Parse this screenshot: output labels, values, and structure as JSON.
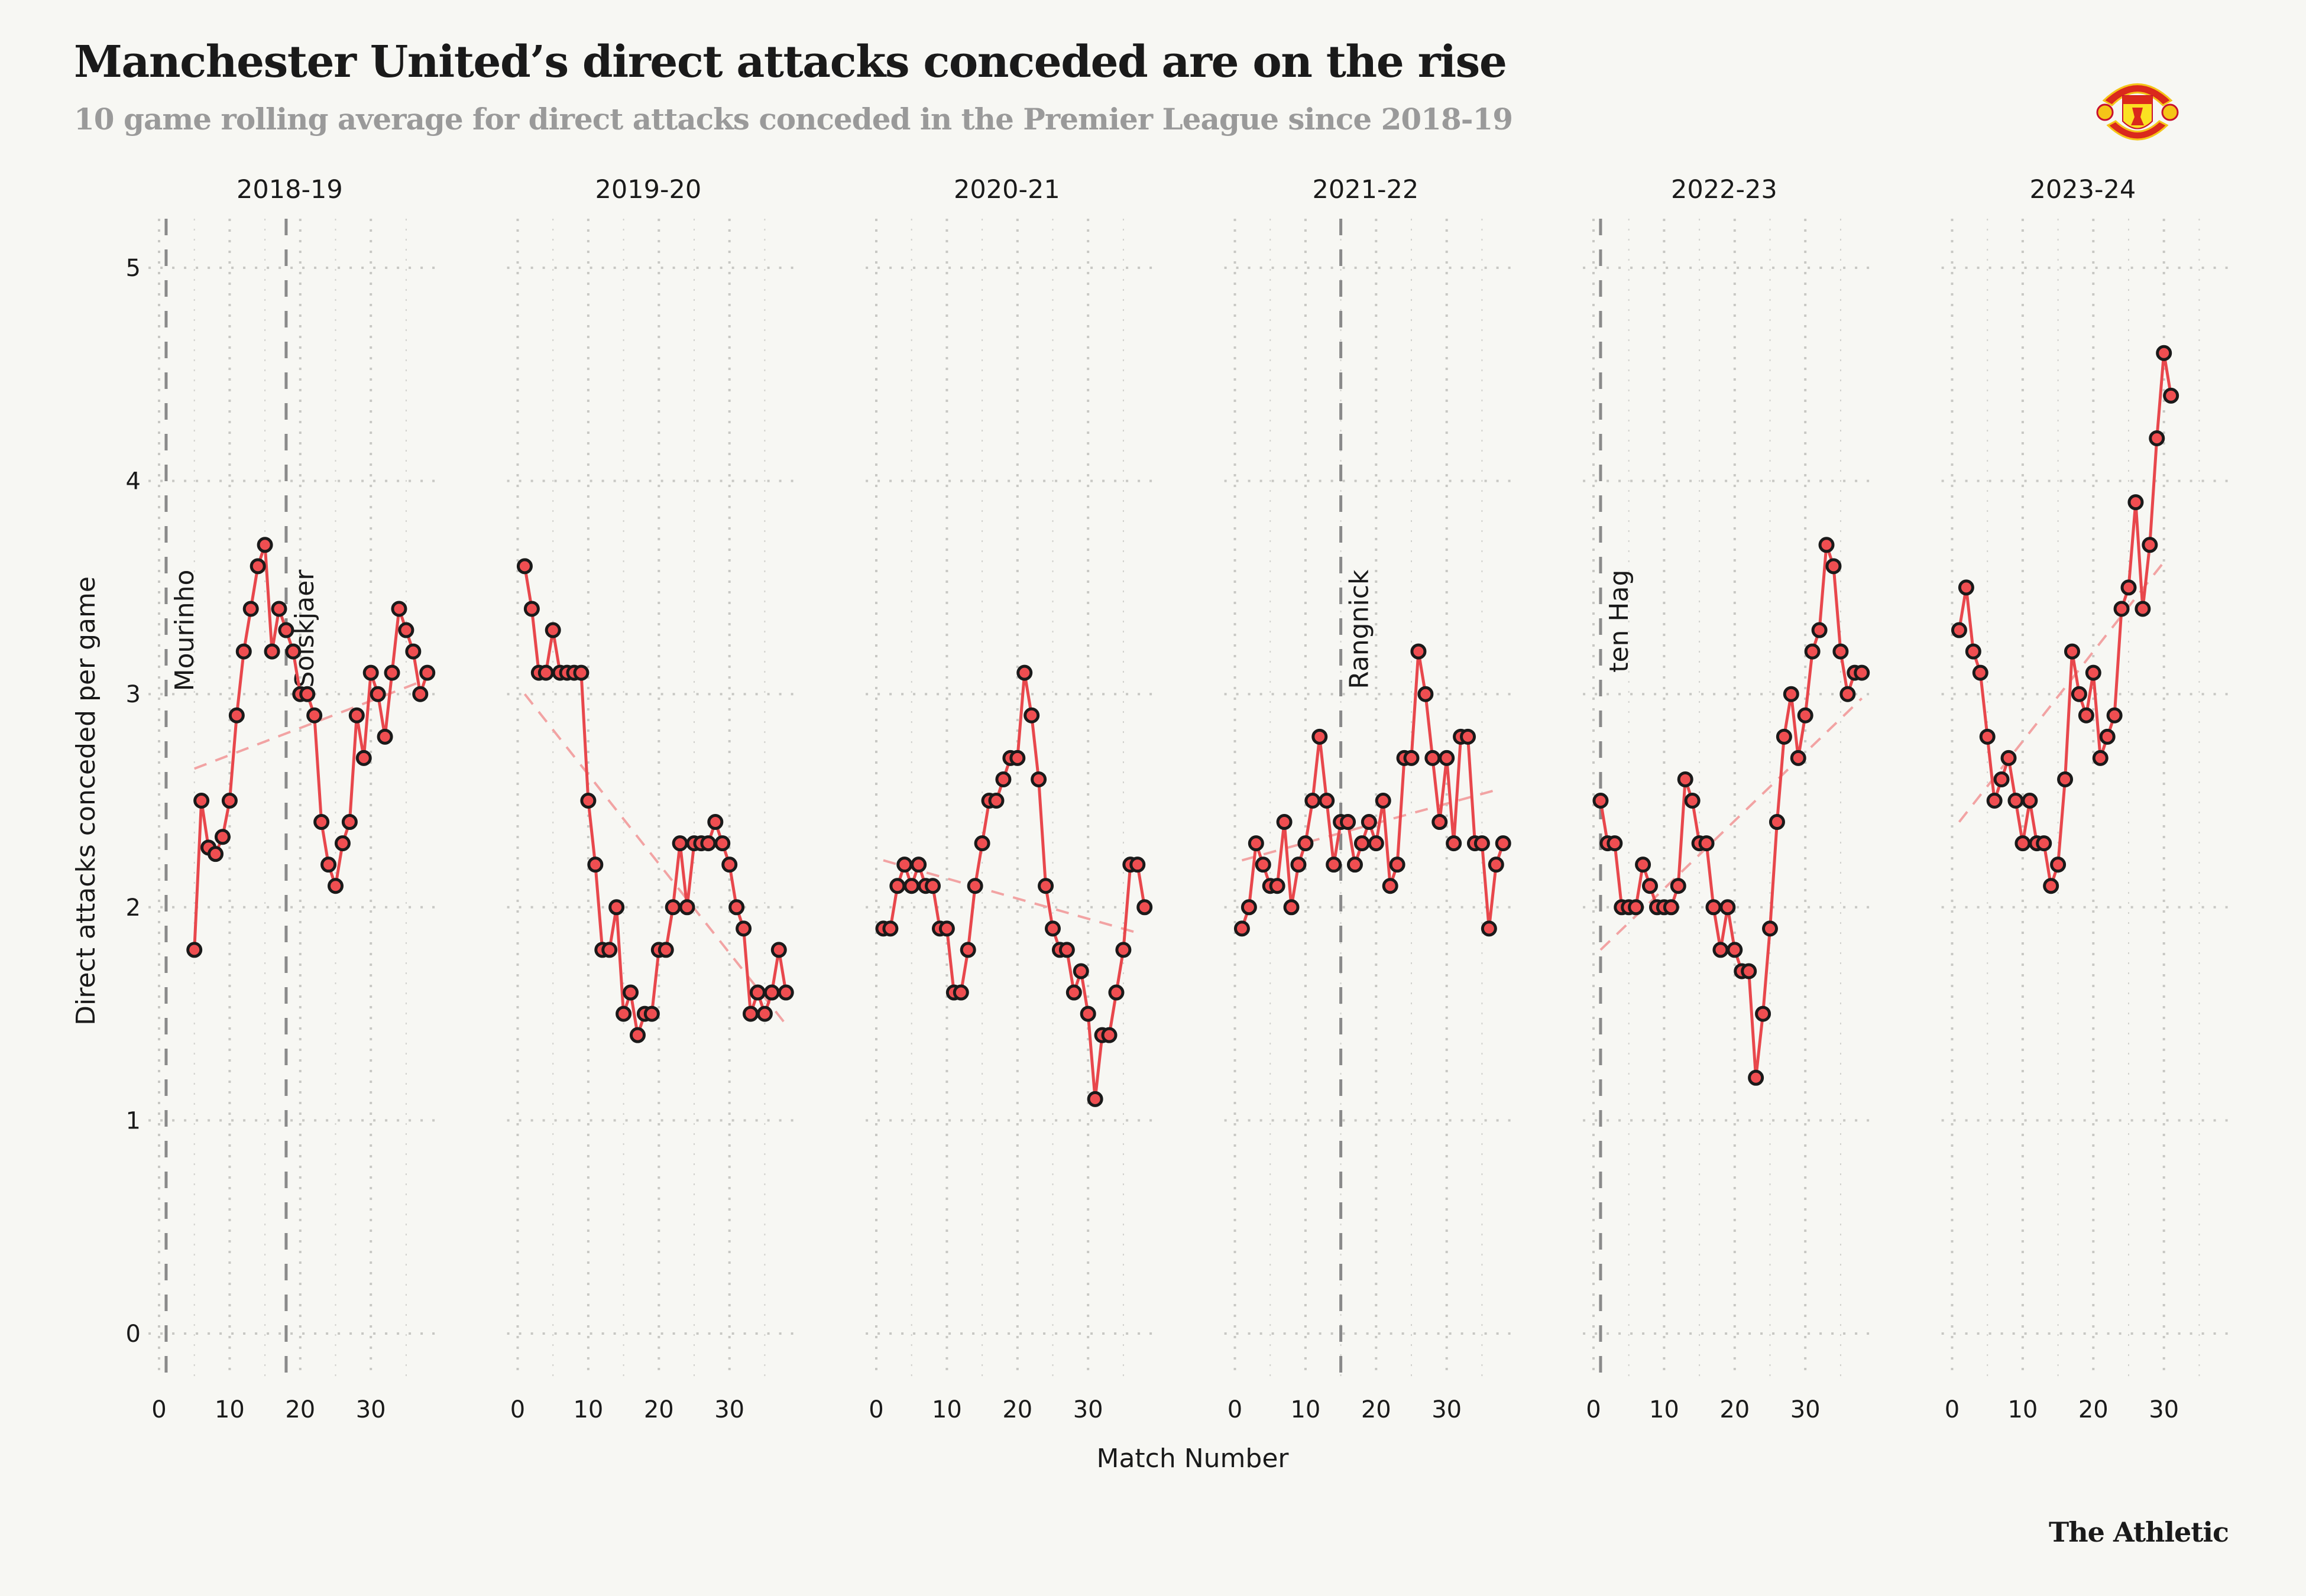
{
  "header": {
    "title": "Manchester United’s direct attacks conceded are on the rise",
    "subtitle": "10 game rolling average for direct attacks conceded in the Premier League since 2018-19"
  },
  "logo": {
    "name": "manchester-united-crest",
    "text_top": "MANCHESTER",
    "text_bottom": "UNITED"
  },
  "footer": {
    "brand": "The Athletic"
  },
  "chart_data": {
    "type": "line",
    "title": "Manchester United’s direct attacks conceded are on the rise",
    "subtitle": "10 game rolling average for direct attacks conceded in the Premier League since 2018-19",
    "xlabel": "Match Number",
    "ylabel": "Direct attacks conceded per game",
    "ylim": [
      0,
      5
    ],
    "yticks": [
      0,
      1,
      2,
      3,
      4,
      5
    ],
    "xticks": [
      0,
      10,
      20,
      30
    ],
    "grid": true,
    "colors": {
      "line": "#e8474c",
      "point_fill": "#ef4e51",
      "point_stroke": "#1a1a1a",
      "trend": "#f2a3a3",
      "manager_line": "#8a8a8a",
      "grid": "#c8c8c4"
    },
    "facets": [
      {
        "season": "2018-19",
        "start_match": 5,
        "values": [
          1.8,
          2.5,
          2.28,
          2.25,
          2.33,
          2.5,
          2.9,
          3.2,
          3.4,
          3.6,
          3.7,
          3.2,
          3.4,
          3.3,
          3.2,
          3.0,
          3.0,
          2.9,
          2.4,
          2.2,
          2.1,
          2.3,
          2.4,
          2.9,
          2.7,
          3.1,
          3.0,
          2.8,
          3.1,
          3.4,
          3.3,
          3.2,
          3.0,
          3.1
        ],
        "trend": {
          "from": [
            5,
            2.65
          ],
          "to": [
            38,
            3.07
          ]
        },
        "managers": [
          {
            "name": "Mourinho",
            "match": 1
          },
          {
            "name": "Solskjaer",
            "match": 18
          }
        ]
      },
      {
        "season": "2019-20",
        "start_match": 1,
        "values": [
          3.6,
          3.4,
          3.1,
          3.1,
          3.3,
          3.1,
          3.1,
          3.1,
          3.1,
          2.5,
          2.2,
          1.8,
          1.8,
          2.0,
          1.5,
          1.6,
          1.4,
          1.5,
          1.5,
          1.8,
          1.8,
          2.0,
          2.3,
          2.0,
          2.3,
          2.3,
          2.3,
          2.4,
          2.3,
          2.2,
          2.0,
          1.9,
          1.5,
          1.6,
          1.5,
          1.6,
          1.8,
          1.6
        ],
        "trend": {
          "from": [
            1,
            3.0
          ],
          "to": [
            38,
            1.45
          ]
        },
        "managers": []
      },
      {
        "season": "2020-21",
        "start_match": 1,
        "values": [
          1.9,
          1.9,
          2.1,
          2.2,
          2.1,
          2.2,
          2.1,
          2.1,
          1.9,
          1.9,
          1.6,
          1.6,
          1.8,
          2.1,
          2.3,
          2.5,
          2.5,
          2.6,
          2.7,
          2.7,
          3.1,
          2.9,
          2.6,
          2.1,
          1.9,
          1.8,
          1.8,
          1.6,
          1.7,
          1.5,
          1.1,
          1.4,
          1.4,
          1.6,
          1.8,
          2.2,
          2.2,
          2.0
        ],
        "trend": {
          "from": [
            1,
            2.22
          ],
          "to": [
            37,
            1.88
          ]
        },
        "managers": []
      },
      {
        "season": "2021-22",
        "start_match": 1,
        "values": [
          1.9,
          2.0,
          2.3,
          2.2,
          2.1,
          2.1,
          2.4,
          2.0,
          2.2,
          2.3,
          2.5,
          2.8,
          2.5,
          2.2,
          2.4,
          2.4,
          2.2,
          2.3,
          2.4,
          2.3,
          2.5,
          2.1,
          2.2,
          2.7,
          2.7,
          3.2,
          3.0,
          2.7,
          2.4,
          2.7,
          2.3,
          2.8,
          2.8,
          2.3,
          2.3,
          1.9,
          2.2,
          2.3
        ],
        "trend": {
          "from": [
            1,
            2.22
          ],
          "to": [
            37,
            2.55
          ]
        },
        "managers": [
          {
            "name": "Rangnick",
            "match": 15
          }
        ]
      },
      {
        "season": "2022-23",
        "start_match": 1,
        "values": [
          2.5,
          2.3,
          2.3,
          2.0,
          2.0,
          2.0,
          2.2,
          2.1,
          2.0,
          2.0,
          2.0,
          2.1,
          2.6,
          2.5,
          2.3,
          2.3,
          2.0,
          1.8,
          2.0,
          1.8,
          1.7,
          1.7,
          1.2,
          1.5,
          1.9,
          2.4,
          2.8,
          3.0,
          2.7,
          2.9,
          3.2,
          3.3,
          3.7,
          3.6,
          3.2,
          3.0,
          3.1,
          3.1
        ],
        "trend": {
          "from": [
            1,
            1.8
          ],
          "to": [
            38,
            2.98
          ]
        },
        "managers": [
          {
            "name": "ten Hag",
            "match": 1
          }
        ]
      },
      {
        "season": "2023-24",
        "start_match": 1,
        "values": [
          3.3,
          3.5,
          3.2,
          3.1,
          2.8,
          2.5,
          2.6,
          2.7,
          2.5,
          2.3,
          2.5,
          2.3,
          2.3,
          2.1,
          2.2,
          2.6,
          3.2,
          3.0,
          2.9,
          3.1,
          2.7,
          2.8,
          2.9,
          3.4,
          3.5,
          3.9,
          3.4,
          3.7,
          4.2,
          4.6,
          4.4
        ],
        "trend": {
          "from": [
            1,
            2.4
          ],
          "to": [
            30,
            3.62
          ]
        },
        "managers": []
      }
    ]
  }
}
